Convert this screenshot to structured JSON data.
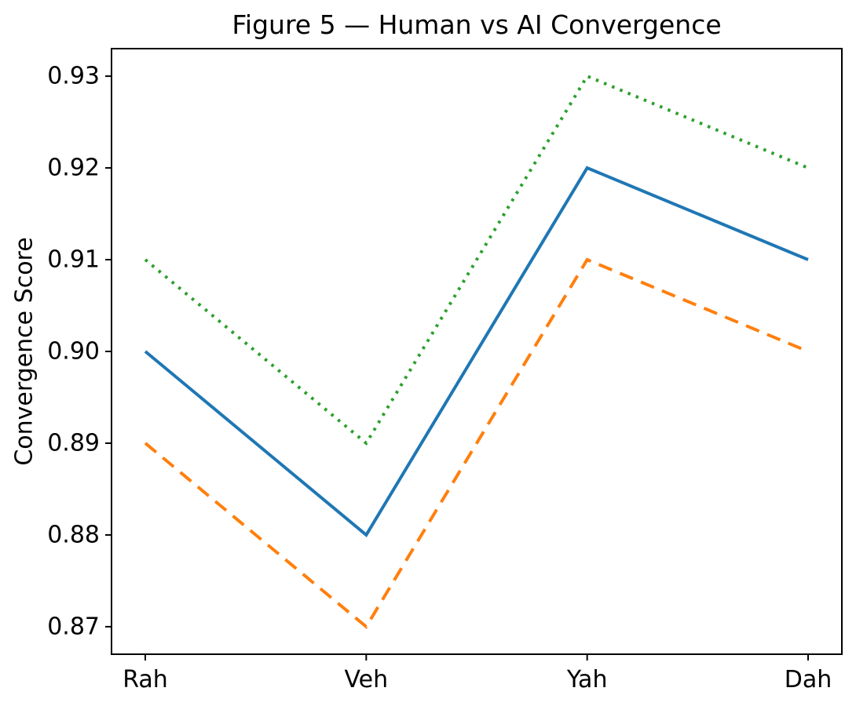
{
  "chart_data": {
    "type": "line",
    "title": "Figure 5 — Human vs AI Convergence",
    "xlabel": "",
    "ylabel": "Convergence Score",
    "categories": [
      "Rah",
      "Veh",
      "Yah",
      "Dah"
    ],
    "series": [
      {
        "name": "blue-solid-line",
        "values": [
          0.9,
          0.88,
          0.92,
          0.91
        ],
        "color": "#1f77b4",
        "style": "solid",
        "linewidth": 4
      },
      {
        "name": "orange-dashed-line",
        "values": [
          0.89,
          0.87,
          0.91,
          0.9
        ],
        "color": "#ff7f0e",
        "style": "dashed",
        "linewidth": 4
      },
      {
        "name": "green-dotted-line",
        "values": [
          0.91,
          0.89,
          0.93,
          0.92
        ],
        "color": "#2ca02c",
        "style": "dotted",
        "linewidth": 4
      }
    ],
    "y_tick_labels": [
      "0.87",
      "0.88",
      "0.89",
      "0.90",
      "0.91",
      "0.92",
      "0.93"
    ],
    "y_ticks": [
      0.87,
      0.88,
      0.89,
      0.9,
      0.91,
      0.92,
      0.93
    ],
    "ylim": [
      0.867,
      0.933
    ],
    "grid": false,
    "legend": "none",
    "background": "#ffffff",
    "axis_color": "#000000"
  }
}
